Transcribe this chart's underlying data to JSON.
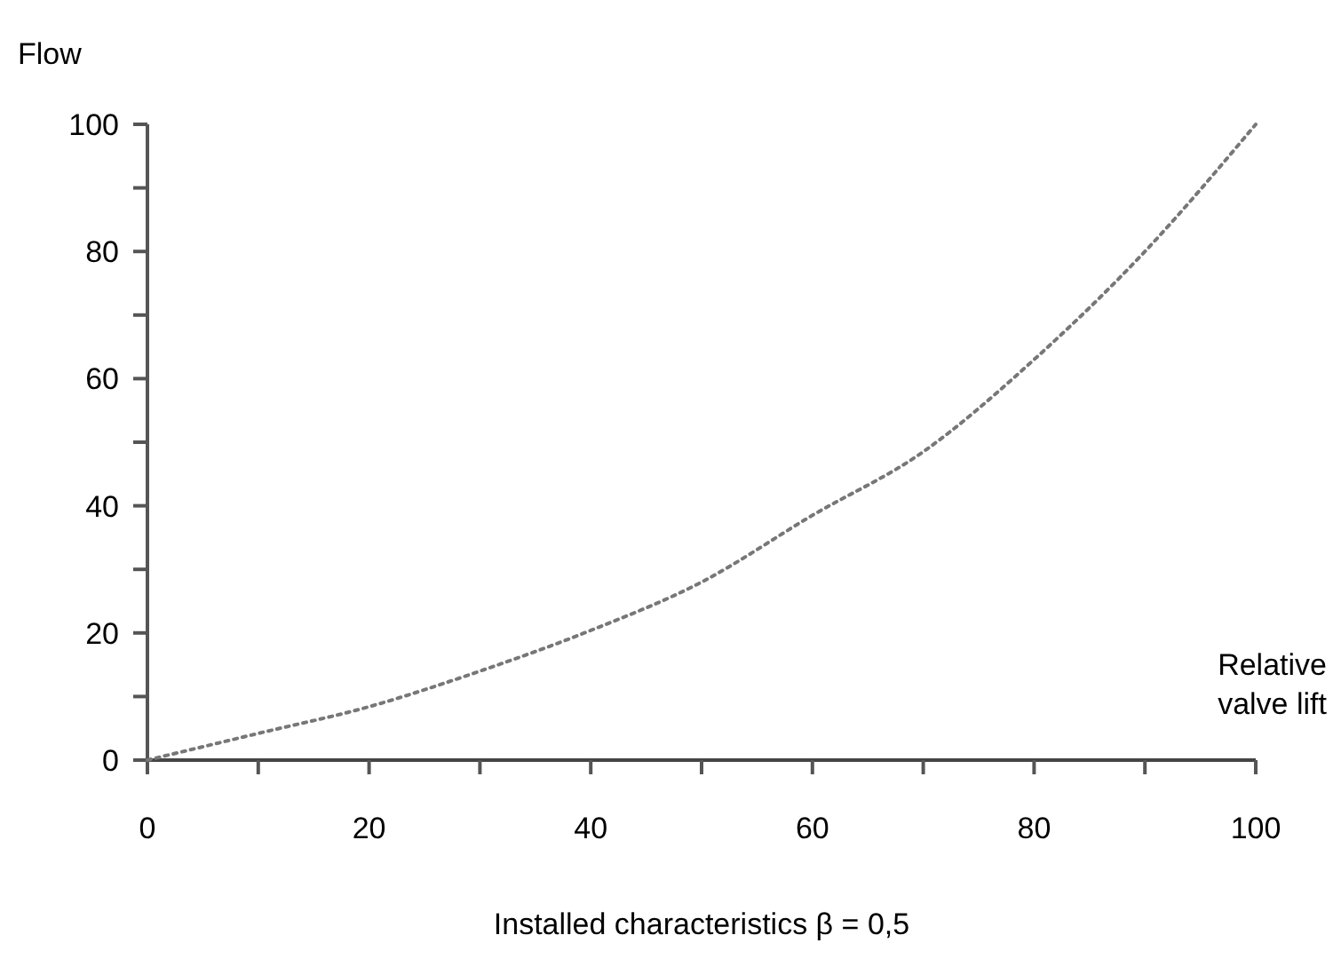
{
  "chart_data": {
    "type": "line",
    "title": "Installed characteristics β = 0,5",
    "xlabel": "Relative valve lift",
    "ylabel": "Flow",
    "x": [
      0,
      10,
      20,
      30,
      40,
      50,
      60,
      70,
      80,
      90,
      100
    ],
    "series": [
      {
        "color": "#777777",
        "values": [
          0,
          4.2,
          8.4,
          14,
          20.4,
          28,
          38.5,
          48.5,
          63,
          80,
          100
        ]
      }
    ],
    "xlim": [
      0,
      100
    ],
    "ylim": [
      0,
      100
    ],
    "xticks": [
      0,
      {
        "value": 10,
        "label": null
      },
      20,
      {
        "value": 30,
        "label": null
      },
      40,
      {
        "value": 50,
        "label": null
      },
      60,
      {
        "value": 70,
        "label": null
      },
      80,
      {
        "value": 90,
        "label": null
      },
      100
    ],
    "yticks": [
      0,
      {
        "value": 10,
        "label": null
      },
      20,
      {
        "value": 30,
        "label": null
      },
      40,
      {
        "value": 50,
        "label": null
      },
      60,
      {
        "value": 70,
        "label": null
      },
      80,
      {
        "value": 90,
        "label": null
      },
      100
    ],
    "marker": "none",
    "line_style": "dotted"
  }
}
